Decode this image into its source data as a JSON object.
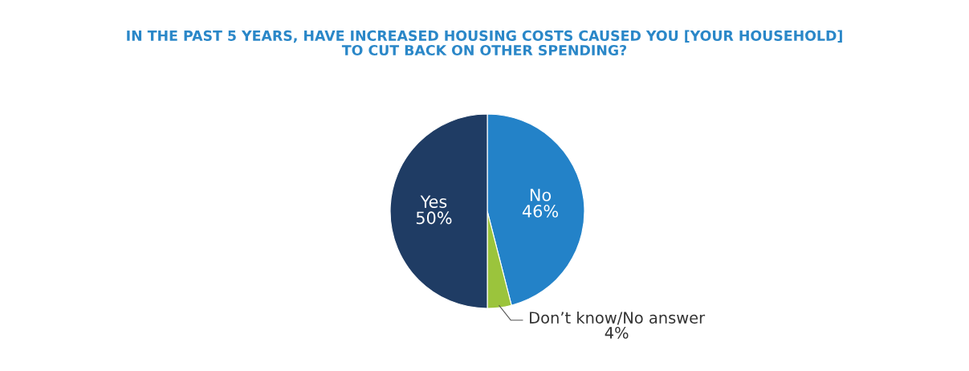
{
  "chart_data": {
    "type": "pie",
    "title": "IN THE PAST 5 YEARS, HAVE INCREASED HOUSING COSTS CAUSED YOU [YOUR HOUSEHOLD]\nTO CUT BACK ON OTHER SPENDING?",
    "categories": [
      "No",
      "Don’t know/No answer",
      "Yes"
    ],
    "values": [
      46,
      4,
      50
    ],
    "value_labels": [
      "46%",
      "4%",
      "50%"
    ],
    "colors": [
      "#2382c8",
      "#9bc43c",
      "#1f3c64"
    ]
  }
}
